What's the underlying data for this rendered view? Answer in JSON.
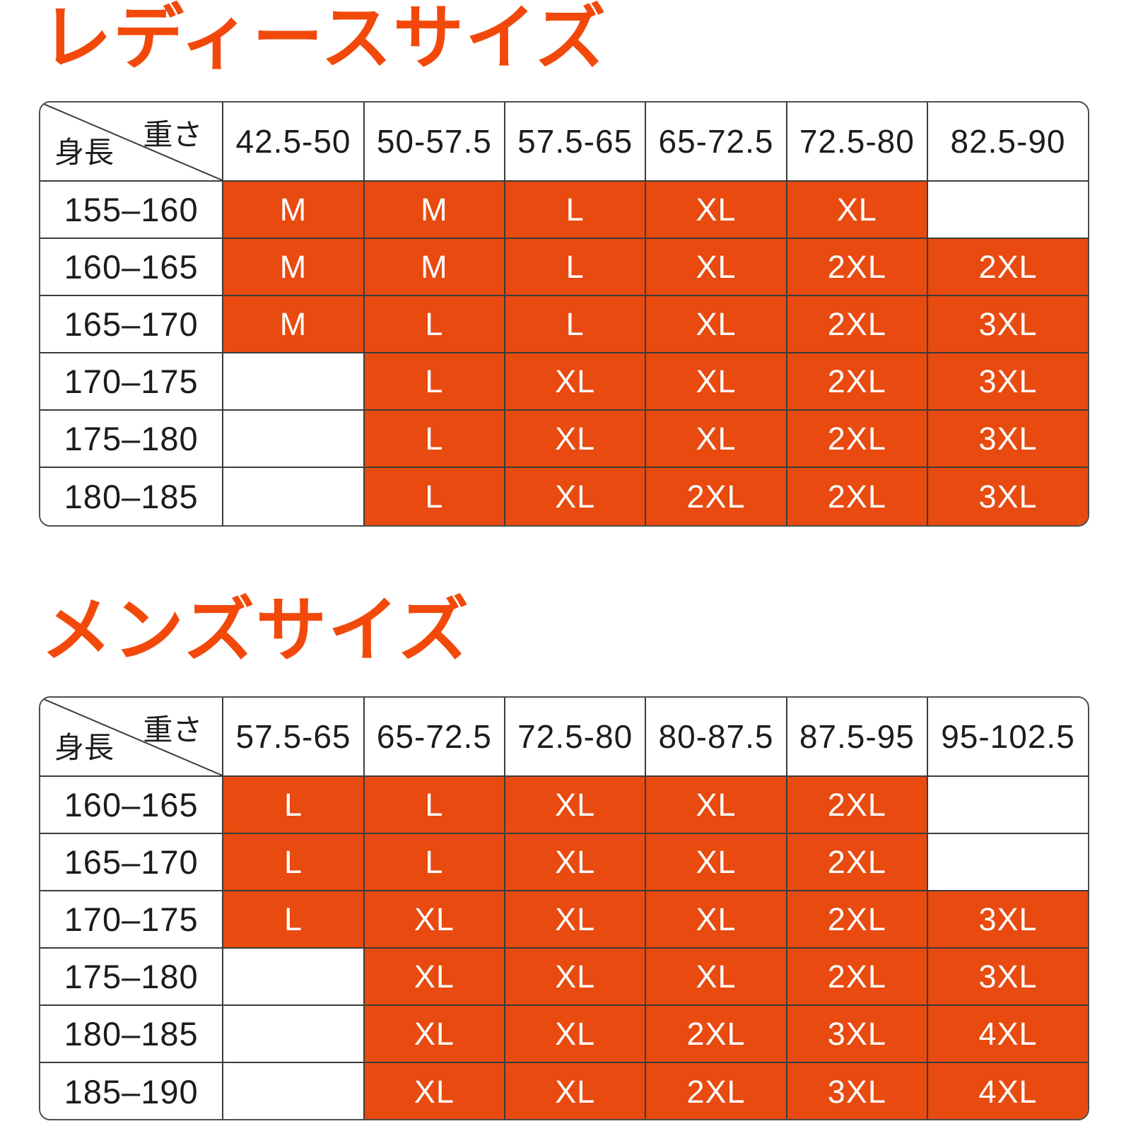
{
  "colors": {
    "title_accent": "#F2490B",
    "cell_fill": "#E84A0F",
    "grid_line": "#3c3c3c",
    "size_text": "#ffffff",
    "label_text": "#1c1c1c"
  },
  "chart_data": [
    {
      "type": "table",
      "title": "レディースサイズ",
      "corner": {
        "top_right": "重さ",
        "bottom_left": "身長"
      },
      "weight_columns": [
        "42.5-50",
        "50-57.5",
        "57.5-65",
        "65-72.5",
        "72.5-80",
        "82.5-90"
      ],
      "rows": [
        {
          "height": "155–160",
          "sizes": [
            "M",
            "M",
            "L",
            "XL",
            "XL",
            ""
          ]
        },
        {
          "height": "160–165",
          "sizes": [
            "M",
            "M",
            "L",
            "XL",
            "2XL",
            "2XL"
          ]
        },
        {
          "height": "165–170",
          "sizes": [
            "M",
            "L",
            "L",
            "XL",
            "2XL",
            "3XL"
          ]
        },
        {
          "height": "170–175",
          "sizes": [
            "",
            "L",
            "XL",
            "XL",
            "2XL",
            "3XL"
          ]
        },
        {
          "height": "175–180",
          "sizes": [
            "",
            "L",
            "XL",
            "XL",
            "2XL",
            "3XL"
          ]
        },
        {
          "height": "180–185",
          "sizes": [
            "",
            "L",
            "XL",
            "2XL",
            "2XL",
            "3XL"
          ]
        }
      ]
    },
    {
      "type": "table",
      "title": "メンズサイズ",
      "corner": {
        "top_right": "重さ",
        "bottom_left": "身長"
      },
      "weight_columns": [
        "57.5-65",
        "65-72.5",
        "72.5-80",
        "80-87.5",
        "87.5-95",
        "95-102.5"
      ],
      "rows": [
        {
          "height": "160–165",
          "sizes": [
            "L",
            "L",
            "XL",
            "XL",
            "2XL",
            ""
          ]
        },
        {
          "height": "165–170",
          "sizes": [
            "L",
            "L",
            "XL",
            "XL",
            "2XL",
            ""
          ]
        },
        {
          "height": "170–175",
          "sizes": [
            "L",
            "XL",
            "XL",
            "XL",
            "2XL",
            "3XL"
          ]
        },
        {
          "height": "175–180",
          "sizes": [
            "",
            "XL",
            "XL",
            "XL",
            "2XL",
            "3XL"
          ]
        },
        {
          "height": "180–185",
          "sizes": [
            "",
            "XL",
            "XL",
            "2XL",
            "3XL",
            "4XL"
          ]
        },
        {
          "height": "185–190",
          "sizes": [
            "",
            "XL",
            "XL",
            "2XL",
            "3XL",
            "4XL"
          ]
        }
      ]
    }
  ]
}
